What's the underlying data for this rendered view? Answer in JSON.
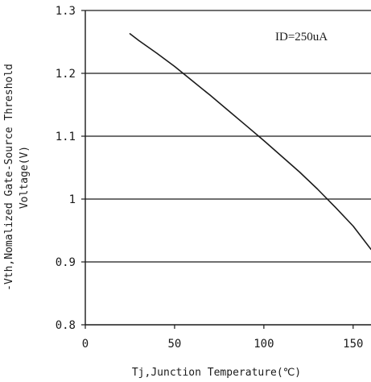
{
  "chart_data": {
    "type": "line",
    "title": "",
    "xlabel": "Tj,Junction Temperature(℃)",
    "ylabel_line1": "-Vth,Nomalized Gate-Source Threshold",
    "ylabel_line2": "Voltage(V)",
    "annotation": "ID=250uA",
    "xlim": [
      0,
      160
    ],
    "ylim": [
      0.8,
      1.3
    ],
    "xticks": [
      0,
      50,
      100,
      150
    ],
    "xtick_labels": [
      "0",
      "50",
      "100",
      "150"
    ],
    "yticks": [
      0.8,
      0.9,
      1.0,
      1.1,
      1.2,
      1.3
    ],
    "ytick_labels": [
      "0.8",
      "0.9",
      "1",
      "1.1",
      "1.2",
      "1.3"
    ],
    "grid": "horizontal",
    "legend": "none",
    "colors": {
      "line": "#1a1a1a",
      "grid": "#1a1a1a",
      "axis": "#1a1a1a"
    },
    "series": [
      {
        "x": [
          25,
          30,
          40,
          50,
          60,
          70,
          80,
          90,
          100,
          110,
          120,
          130,
          140,
          150,
          160
        ],
        "values": [
          1.263,
          1.252,
          1.232,
          1.211,
          1.188,
          1.165,
          1.141,
          1.117,
          1.093,
          1.068,
          1.043,
          1.016,
          0.987,
          0.957,
          0.92
        ]
      }
    ]
  }
}
